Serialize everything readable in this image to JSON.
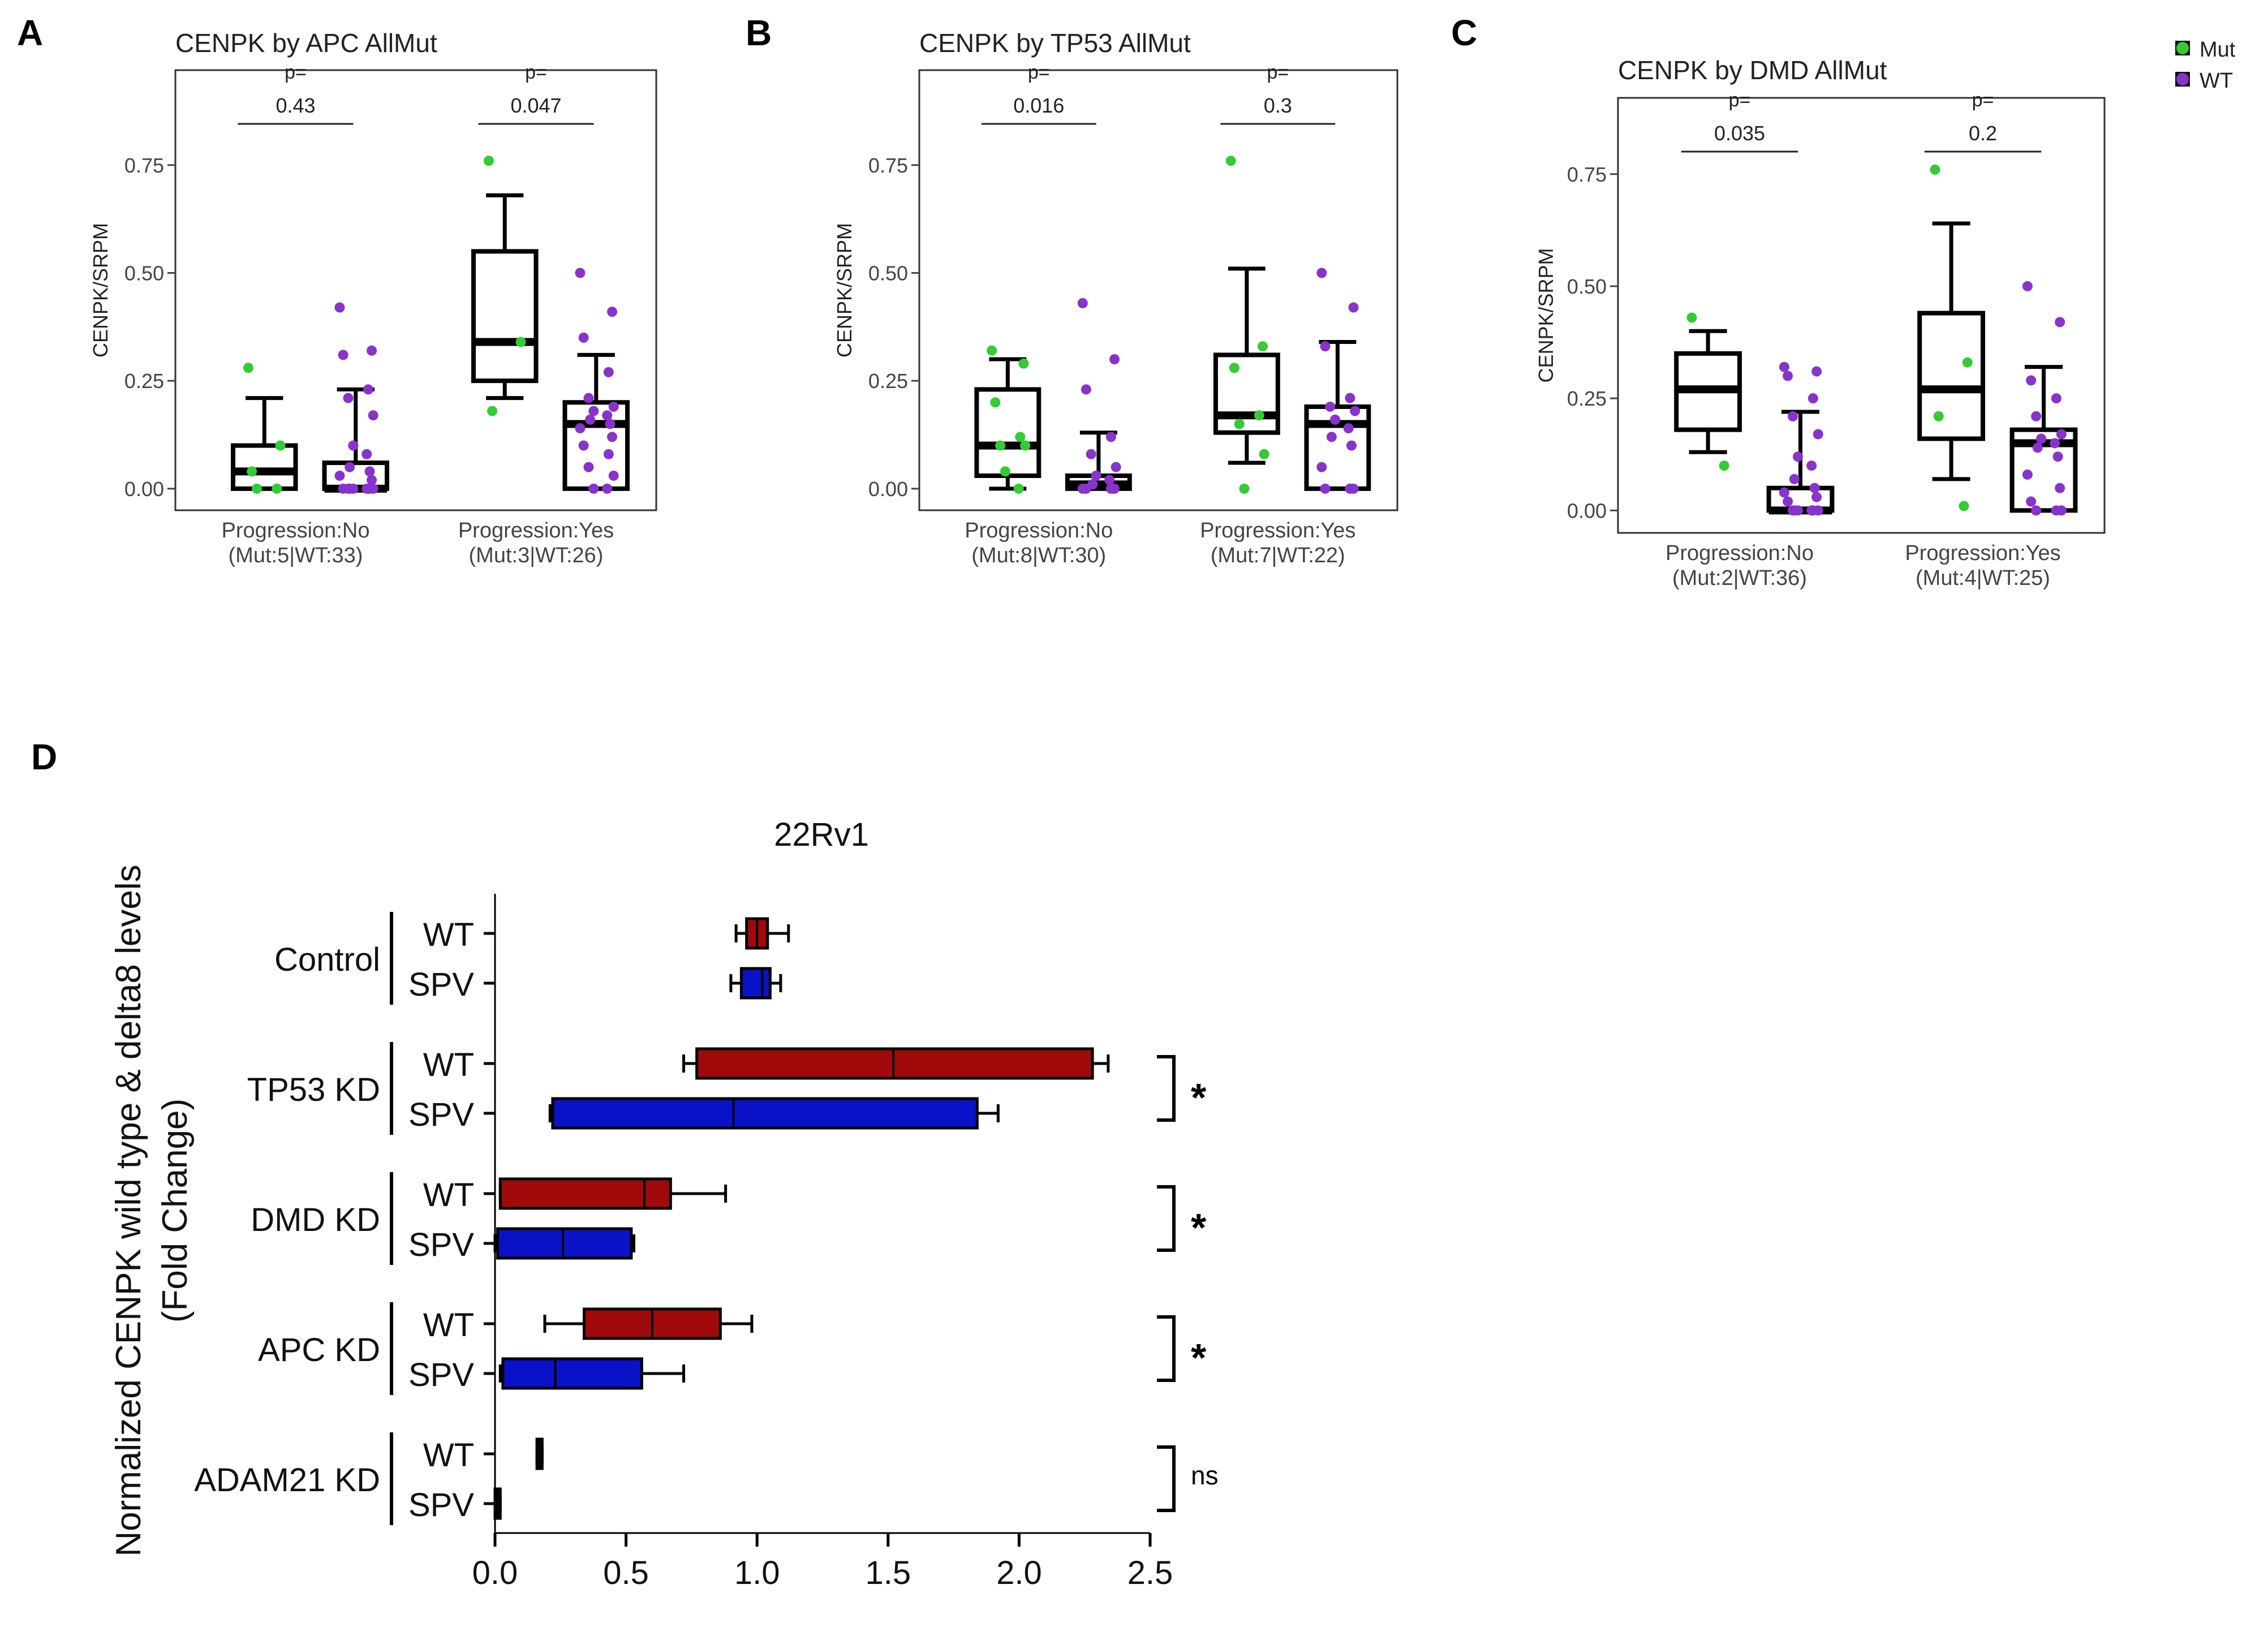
{
  "legend": {
    "items": [
      {
        "label": "Mut",
        "color": "#33CC33"
      },
      {
        "label": "WT",
        "color": "#8833CC"
      }
    ]
  },
  "colors": {
    "mut": "#33CC33",
    "wt": "#8833CC",
    "wt_bar": "#A00A0A",
    "spv_bar": "#0A12C8"
  },
  "chart_data": [
    {
      "type": "box",
      "panel_label": "A",
      "title": "CENPK by APC AllMut",
      "ylabel": "CENPK/SRPM",
      "ylim": [
        -0.05,
        0.97
      ],
      "yticks": [
        "0.00",
        "0.25",
        "0.50",
        "0.75"
      ],
      "categories": [
        {
          "line1": "Progression:No",
          "line2": "(Mut:5|WT:33)",
          "p_label": "p=",
          "p_value": "0.43",
          "mut": {
            "q1": 0.0,
            "median": 0.04,
            "q3": 0.1,
            "whisker_low": 0.0,
            "whisker_high": 0.21,
            "points": [
              0.28,
              0.1,
              0.04,
              0.0,
              0.0
            ]
          },
          "wt": {
            "q1": 0.0,
            "median": 0.0,
            "q3": 0.06,
            "whisker_low": 0.0,
            "whisker_high": 0.23,
            "points": [
              0.42,
              0.32,
              0.31,
              0.23,
              0.21,
              0.17,
              0.1,
              0.08,
              0.05,
              0.04,
              0.03,
              0.02,
              0.0,
              0.0,
              0.0,
              0.0,
              0.0,
              0.0,
              0.0,
              0.0
            ]
          }
        },
        {
          "line1": "Progression:Yes",
          "line2": "(Mut:3|WT:26)",
          "p_label": "p=",
          "p_value": "0.047",
          "mut": {
            "q1": 0.25,
            "median": 0.34,
            "q3": 0.55,
            "whisker_low": 0.21,
            "whisker_high": 0.68,
            "points": [
              0.76,
              0.34,
              0.18
            ]
          },
          "wt": {
            "q1": 0.0,
            "median": 0.15,
            "q3": 0.2,
            "whisker_low": 0.0,
            "whisker_high": 0.31,
            "points": [
              0.5,
              0.41,
              0.35,
              0.27,
              0.21,
              0.19,
              0.18,
              0.17,
              0.16,
              0.15,
              0.14,
              0.12,
              0.1,
              0.08,
              0.05,
              0.03,
              0.0,
              0.0
            ]
          }
        }
      ]
    },
    {
      "type": "box",
      "panel_label": "B",
      "title": "CENPK by TP53 AllMut",
      "ylabel": "CENPK/SRPM",
      "ylim": [
        -0.05,
        0.97
      ],
      "yticks": [
        "0.00",
        "0.25",
        "0.50",
        "0.75"
      ],
      "categories": [
        {
          "line1": "Progression:No",
          "line2": "(Mut:8|WT:30)",
          "p_label": "p=",
          "p_value": "0.016",
          "mut": {
            "q1": 0.03,
            "median": 0.1,
            "q3": 0.23,
            "whisker_low": 0.0,
            "whisker_high": 0.3,
            "points": [
              0.32,
              0.29,
              0.2,
              0.12,
              0.1,
              0.1,
              0.04,
              0.0
            ]
          },
          "wt": {
            "q1": 0.0,
            "median": 0.01,
            "q3": 0.03,
            "whisker_low": 0.0,
            "whisker_high": 0.13,
            "points": [
              0.43,
              0.3,
              0.23,
              0.12,
              0.08,
              0.05,
              0.03,
              0.02,
              0.01,
              0.0,
              0.0,
              0.0,
              0.0,
              0.0
            ]
          }
        },
        {
          "line1": "Progression:Yes",
          "line2": "(Mut:7|WT:22)",
          "p_label": "p=",
          "p_value": "0.3",
          "mut": {
            "q1": 0.13,
            "median": 0.17,
            "q3": 0.31,
            "whisker_low": 0.06,
            "whisker_high": 0.51,
            "points": [
              0.76,
              0.33,
              0.28,
              0.17,
              0.15,
              0.08,
              0.0
            ]
          },
          "wt": {
            "q1": 0.0,
            "median": 0.15,
            "q3": 0.19,
            "whisker_low": 0.0,
            "whisker_high": 0.34,
            "points": [
              0.5,
              0.42,
              0.33,
              0.21,
              0.19,
              0.18,
              0.16,
              0.14,
              0.12,
              0.1,
              0.05,
              0.0,
              0.0,
              0.0
            ]
          }
        }
      ]
    },
    {
      "type": "box",
      "panel_label": "C",
      "title": "CENPK by DMD AllMut",
      "ylabel": "CENPK/SRPM",
      "ylim": [
        -0.05,
        0.92
      ],
      "yticks": [
        "0.00",
        "0.25",
        "0.50",
        "0.75"
      ],
      "categories": [
        {
          "line1": "Progression:No",
          "line2": "(Mut:2|WT:36)",
          "p_label": "p=",
          "p_value": "0.035",
          "mut": {
            "q1": 0.18,
            "median": 0.27,
            "q3": 0.35,
            "whisker_low": 0.13,
            "whisker_high": 0.4,
            "points": [
              0.43,
              0.1
            ]
          },
          "wt": {
            "q1": 0.0,
            "median": 0.0,
            "q3": 0.05,
            "whisker_low": 0.0,
            "whisker_high": 0.22,
            "points": [
              0.32,
              0.31,
              0.3,
              0.25,
              0.21,
              0.17,
              0.12,
              0.1,
              0.07,
              0.05,
              0.04,
              0.03,
              0.02,
              0.0,
              0.0,
              0.0,
              0.0,
              0.0,
              0.0
            ]
          }
        },
        {
          "line1": "Progression:Yes",
          "line2": "(Mut:4|WT:25)",
          "p_label": "p=",
          "p_value": "0.2",
          "mut": {
            "q1": 0.16,
            "median": 0.27,
            "q3": 0.44,
            "whisker_low": 0.07,
            "whisker_high": 0.64,
            "points": [
              0.76,
              0.33,
              0.21,
              0.01
            ]
          },
          "wt": {
            "q1": 0.0,
            "median": 0.15,
            "q3": 0.18,
            "whisker_low": 0.0,
            "whisker_high": 0.32,
            "points": [
              0.5,
              0.42,
              0.29,
              0.25,
              0.21,
              0.17,
              0.16,
              0.15,
              0.14,
              0.12,
              0.08,
              0.05,
              0.02,
              0.0,
              0.0,
              0.0
            ]
          }
        }
      ]
    },
    {
      "type": "horizontal_box",
      "panel_label": "D",
      "title": "22Rv1",
      "xlabel": "",
      "ylabel_line1": "Normalized CENPK wild type & delta8 levels",
      "ylabel_line2": "(Fold Change)",
      "xlim": [
        0,
        2.5
      ],
      "xticks": [
        "0.0",
        "0.5",
        "1.0",
        "1.5",
        "2.0",
        "2.5"
      ],
      "groups": [
        {
          "label": "Control",
          "significance": "",
          "rows": [
            {
              "label": "WT",
              "kind": "wt",
              "min": 0.92,
              "q1": 0.96,
              "median": 1.0,
              "q3": 1.04,
              "max": 1.12
            },
            {
              "label": "SPV",
              "kind": "spv",
              "min": 0.9,
              "q1": 0.94,
              "median": 1.02,
              "q3": 1.05,
              "max": 1.09
            }
          ]
        },
        {
          "label": "TP53 KD",
          "significance": "*",
          "rows": [
            {
              "label": "WT",
              "kind": "wt",
              "min": 0.72,
              "q1": 0.77,
              "median": 1.52,
              "q3": 2.28,
              "max": 2.34
            },
            {
              "label": "SPV",
              "kind": "spv",
              "min": 0.21,
              "q1": 0.22,
              "median": 0.91,
              "q3": 1.84,
              "max": 1.92
            }
          ]
        },
        {
          "label": "DMD KD",
          "significance": "*",
          "rows": [
            {
              "label": "WT",
              "kind": "wt",
              "min": 0.02,
              "q1": 0.02,
              "median": 0.57,
              "q3": 0.67,
              "max": 0.88
            },
            {
              "label": "SPV",
              "kind": "spv",
              "min": 0.0,
              "q1": 0.01,
              "median": 0.26,
              "q3": 0.52,
              "max": 0.53
            }
          ]
        },
        {
          "label": "APC KD",
          "significance": "*",
          "rows": [
            {
              "label": "WT",
              "kind": "wt",
              "min": 0.19,
              "q1": 0.34,
              "median": 0.6,
              "q3": 0.86,
              "max": 0.98
            },
            {
              "label": "SPV",
              "kind": "spv",
              "min": 0.02,
              "q1": 0.03,
              "median": 0.23,
              "q3": 0.56,
              "max": 0.72
            }
          ]
        },
        {
          "label": "ADAM21 KD",
          "significance": "ns",
          "rows": [
            {
              "label": "WT",
              "kind": "wt",
              "min": 0.16,
              "q1": 0.16,
              "median": 0.17,
              "q3": 0.18,
              "max": 0.18
            },
            {
              "label": "SPV",
              "kind": "spv",
              "min": 0.0,
              "q1": 0.0,
              "median": 0.01,
              "q3": 0.02,
              "max": 0.02
            }
          ]
        }
      ]
    }
  ]
}
